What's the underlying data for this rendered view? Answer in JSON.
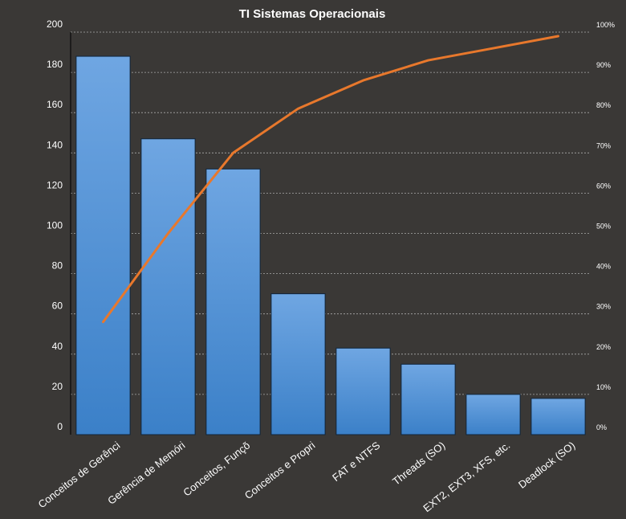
{
  "chart_data": {
    "type": "bar",
    "title": "TI Sistemas  Operacionais",
    "categories": [
      "Conceitos de Gerênci",
      "Gerência de Memóri",
      "Conceitos, Funçõ",
      "Conceitos e Propri",
      "FAT e NTFS",
      "Threads (SO)",
      "EXT2, EXT3, XFS, etc.",
      "Deadlock (SO)"
    ],
    "series": [
      {
        "type": "bar",
        "axis": "left",
        "values": [
          188,
          147,
          132,
          70,
          43,
          35,
          20,
          18
        ]
      },
      {
        "type": "line",
        "axis": "right",
        "values": [
          28,
          50,
          70,
          81,
          88,
          93,
          96,
          99
        ]
      }
    ],
    "y_left": {
      "ylim": [
        0,
        200
      ],
      "ticks": [
        "0",
        "20",
        "40",
        "60",
        "80",
        "100",
        "120",
        "140",
        "160",
        "180",
        "200"
      ]
    },
    "y_right": {
      "ylim": [
        0,
        100
      ],
      "ticks": [
        "0%",
        "10%",
        "20%",
        "30%",
        "40%",
        "50%",
        "60%",
        "70%",
        "80%",
        "90%",
        "100%"
      ]
    },
    "xlabel": "",
    "ylabel": "",
    "grid": true,
    "legend": "none",
    "colors": {
      "background": "#3a3836",
      "bar_top": "#6fa6e2",
      "bar_bottom": "#3b80c8",
      "bar_edge": "#10243a",
      "line": "#e8782c",
      "grid": "#aaaaaa",
      "text": "#ffffff"
    }
  }
}
